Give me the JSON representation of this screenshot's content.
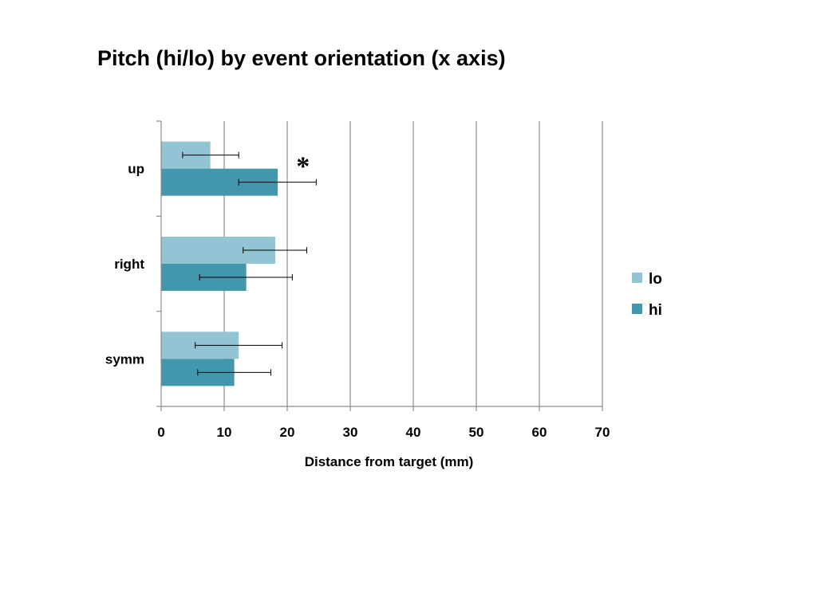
{
  "chart_data": {
    "type": "bar",
    "orientation": "horizontal",
    "title": "Pitch (hi/lo) by event orientation (x axis)",
    "xlabel": "Distance from target (mm)",
    "ylabel": "",
    "xlim": [
      0,
      70
    ],
    "xticks": [
      0,
      10,
      20,
      30,
      40,
      50,
      60,
      70
    ],
    "grid": true,
    "legend_position": "right",
    "categories": [
      "up",
      "right",
      "symm"
    ],
    "series": [
      {
        "name": "lo",
        "color": "#93c4d3",
        "values": [
          7.8,
          18.1,
          12.3
        ],
        "error_low": [
          3.4,
          13.0,
          5.4
        ],
        "error_high": [
          12.3,
          23.1,
          19.2
        ]
      },
      {
        "name": "hi",
        "color": "#4397ac",
        "values": [
          18.5,
          13.5,
          11.6
        ],
        "error_low": [
          12.3,
          6.1,
          5.8
        ],
        "error_high": [
          24.6,
          20.8,
          17.4
        ]
      }
    ],
    "annotations": [
      {
        "text": "*",
        "category": "up",
        "value": 22.5
      }
    ]
  }
}
